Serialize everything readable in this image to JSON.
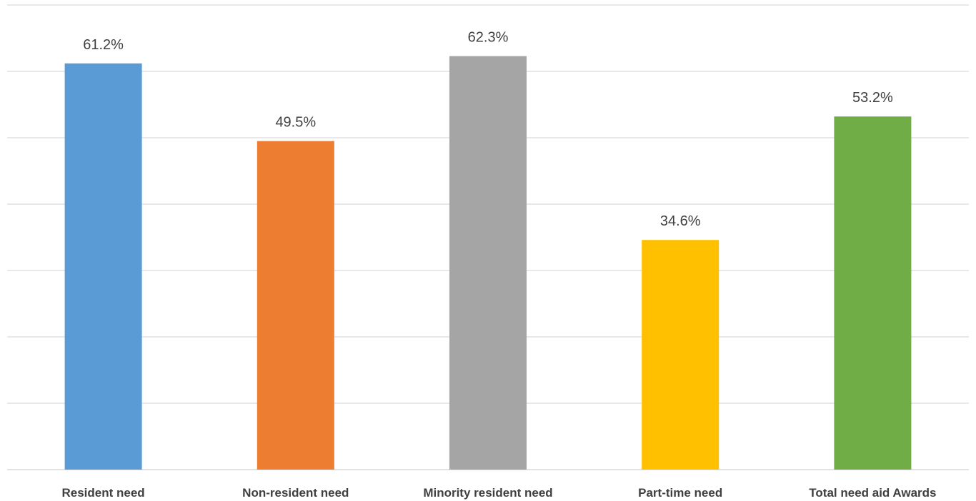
{
  "chart_data": {
    "type": "bar",
    "categories": [
      "Resident need",
      "Non-resident need",
      "Minority resident need",
      "Part-time need",
      "Total need aid Awards"
    ],
    "values": [
      61.2,
      49.5,
      62.3,
      34.6,
      53.2
    ],
    "data_labels": [
      "61.2%",
      "49.5%",
      "62.3%",
      "34.6%",
      "53.2%"
    ],
    "colors": [
      "#5b9bd5",
      "#ed7d31",
      "#a5a5a5",
      "#ffc000",
      "#70ad47"
    ],
    "title": "",
    "xlabel": "",
    "ylabel": "",
    "ylim": [
      0,
      70
    ],
    "y_gridline_step": 10,
    "y_tick_labels_shown": false,
    "grid": true,
    "legend": "none"
  }
}
